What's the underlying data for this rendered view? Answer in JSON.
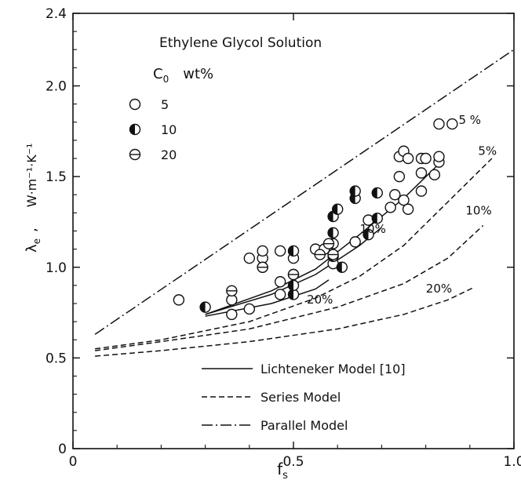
{
  "chart_data": {
    "type": "scatter",
    "xlabel": "f",
    "xlabel_sub": "s",
    "ylabel": "W·m⁻¹·K⁻¹",
    "ylabel_symbol": "λ",
    "ylabel_symbol_sub": "e",
    "ylabel_sep": ",",
    "xlim": [
      0,
      1.0
    ],
    "ylim": [
      0,
      2.4
    ],
    "xticks": [
      "0",
      "0.5",
      "1.0"
    ],
    "yticks": [
      "0",
      "0.5",
      "1.0",
      "1.5",
      "2.0",
      "2.4"
    ],
    "title": "Ethylene Glycol Solution",
    "conc_header_symbol": "C",
    "conc_header_sub": "0",
    "conc_header_unit": "wt%",
    "marker_legend": [
      {
        "label": "5",
        "style": "open"
      },
      {
        "label": "10",
        "style": "half"
      },
      {
        "label": "20",
        "style": "bar"
      }
    ],
    "line_legend": [
      {
        "label": "Lichteneker Model [10]",
        "style": "solid"
      },
      {
        "label": "Series Model",
        "style": "dashed"
      },
      {
        "label": "Parallel Model",
        "style": "dashdot"
      }
    ],
    "series": [
      {
        "marker": "open",
        "points": [
          [
            0.24,
            0.82
          ],
          [
            0.36,
            0.74
          ],
          [
            0.36,
            0.82
          ],
          [
            0.4,
            0.77
          ],
          [
            0.4,
            1.05
          ],
          [
            0.43,
            1.0
          ],
          [
            0.43,
            1.05
          ],
          [
            0.43,
            1.09
          ],
          [
            0.47,
            0.85
          ],
          [
            0.47,
            0.92
          ],
          [
            0.47,
            1.09
          ],
          [
            0.5,
            0.96
          ],
          [
            0.5,
            1.05
          ],
          [
            0.55,
            1.1
          ],
          [
            0.57,
            1.1
          ],
          [
            0.59,
            1.02
          ],
          [
            0.64,
            1.14
          ],
          [
            0.67,
            1.26
          ],
          [
            0.72,
            1.33
          ],
          [
            0.73,
            1.4
          ],
          [
            0.74,
            1.5
          ],
          [
            0.74,
            1.61
          ],
          [
            0.75,
            1.64
          ],
          [
            0.75,
            1.37
          ],
          [
            0.76,
            1.32
          ],
          [
            0.76,
            1.6
          ],
          [
            0.79,
            1.42
          ],
          [
            0.79,
            1.52
          ],
          [
            0.79,
            1.6
          ],
          [
            0.8,
            1.6
          ],
          [
            0.82,
            1.51
          ],
          [
            0.83,
            1.58
          ],
          [
            0.83,
            1.61
          ],
          [
            0.83,
            1.79
          ],
          [
            0.86,
            1.79
          ]
        ]
      },
      {
        "marker": "half",
        "points": [
          [
            0.3,
            0.78
          ],
          [
            0.5,
            0.85
          ],
          [
            0.5,
            0.9
          ],
          [
            0.5,
            1.09
          ],
          [
            0.59,
            1.06
          ],
          [
            0.59,
            1.13
          ],
          [
            0.59,
            1.19
          ],
          [
            0.59,
            1.28
          ],
          [
            0.6,
            1.32
          ],
          [
            0.61,
            1.0
          ],
          [
            0.64,
            1.38
          ],
          [
            0.64,
            1.42
          ],
          [
            0.67,
            1.18
          ],
          [
            0.69,
            1.27
          ],
          [
            0.69,
            1.41
          ]
        ]
      },
      {
        "marker": "bar",
        "points": [
          [
            0.36,
            0.87
          ],
          [
            0.43,
            1.0
          ],
          [
            0.5,
            0.96
          ],
          [
            0.56,
            1.07
          ],
          [
            0.58,
            1.13
          ],
          [
            0.59,
            1.07
          ]
        ]
      }
    ],
    "curves": [
      {
        "style": "dashdot",
        "points": [
          [
            0.05,
            0.63
          ],
          [
            1.0,
            2.2
          ]
        ]
      },
      {
        "style": "dashed",
        "label": "5%",
        "points": [
          [
            0.05,
            0.55
          ],
          [
            0.2,
            0.6
          ],
          [
            0.4,
            0.7
          ],
          [
            0.55,
            0.83
          ],
          [
            0.65,
            0.95
          ],
          [
            0.75,
            1.12
          ],
          [
            0.85,
            1.36
          ],
          [
            0.95,
            1.6
          ]
        ]
      },
      {
        "style": "dashed",
        "label": "10%",
        "points": [
          [
            0.05,
            0.54
          ],
          [
            0.2,
            0.59
          ],
          [
            0.4,
            0.66
          ],
          [
            0.6,
            0.78
          ],
          [
            0.75,
            0.91
          ],
          [
            0.85,
            1.05
          ],
          [
            0.93,
            1.23
          ]
        ]
      },
      {
        "style": "dashed",
        "label": "20%",
        "points": [
          [
            0.05,
            0.51
          ],
          [
            0.2,
            0.54
          ],
          [
            0.4,
            0.59
          ],
          [
            0.6,
            0.66
          ],
          [
            0.75,
            0.74
          ],
          [
            0.85,
            0.82
          ],
          [
            0.91,
            0.89
          ]
        ]
      },
      {
        "style": "solid",
        "label": "5%",
        "points": [
          [
            0.3,
            0.74
          ],
          [
            0.45,
            0.87
          ],
          [
            0.55,
            0.99
          ],
          [
            0.65,
            1.18
          ],
          [
            0.75,
            1.38
          ],
          [
            0.83,
            1.57
          ]
        ]
      },
      {
        "style": "solid",
        "label": "10%",
        "points": [
          [
            0.3,
            0.74
          ],
          [
            0.45,
            0.85
          ],
          [
            0.55,
            0.96
          ],
          [
            0.65,
            1.12
          ],
          [
            0.7,
            1.22
          ]
        ]
      },
      {
        "style": "solid",
        "label": "20%",
        "points": [
          [
            0.3,
            0.73
          ],
          [
            0.45,
            0.8
          ],
          [
            0.55,
            0.88
          ],
          [
            0.58,
            0.93
          ]
        ]
      }
    ],
    "curve_labels": [
      {
        "text": "5 %",
        "x": 0.9,
        "y": 1.79
      },
      {
        "text": "5%",
        "x": 0.94,
        "y": 1.62
      },
      {
        "text": "10%",
        "x": 0.92,
        "y": 1.29
      },
      {
        "text": "10%",
        "x": 0.68,
        "y": 1.19
      },
      {
        "text": "20%",
        "x": 0.83,
        "y": 0.86
      },
      {
        "text": "20%",
        "x": 0.56,
        "y": 0.8
      }
    ]
  }
}
